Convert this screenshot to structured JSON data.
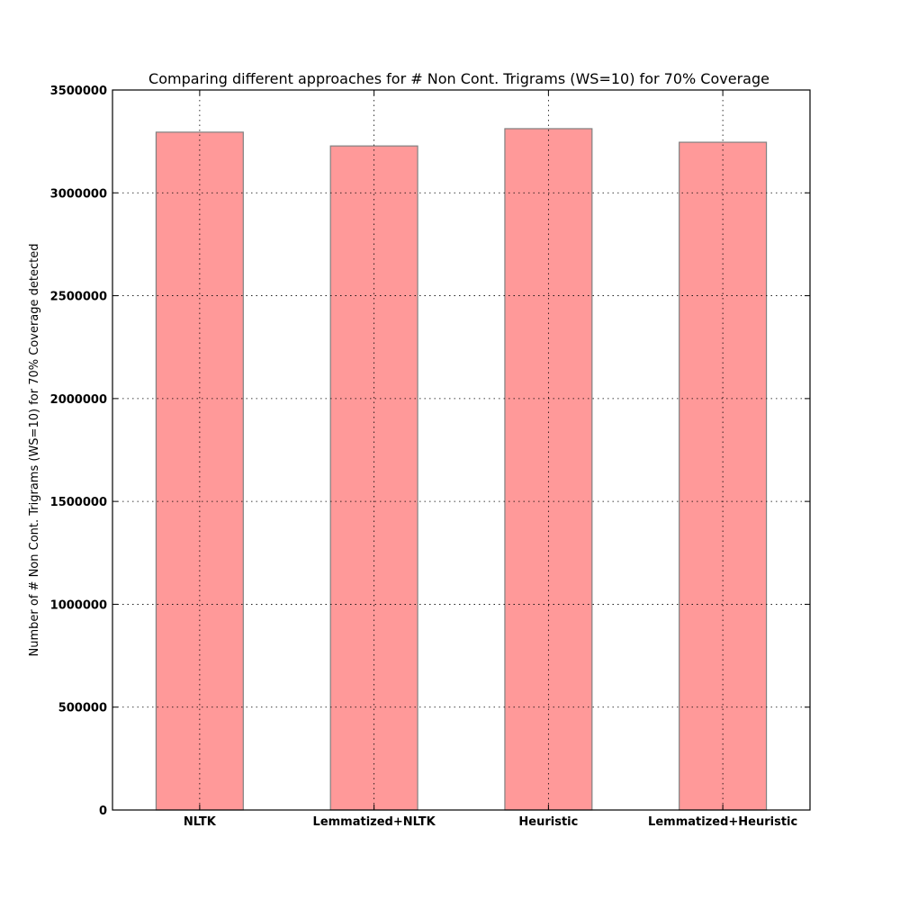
{
  "chart_data": {
    "type": "bar",
    "title": "Comparing different approaches for # Non Cont. Trigrams (WS=10) for 70% Coverage",
    "xlabel": "",
    "ylabel": "Number of # Non Cont. Trigrams (WS=10) for 70% Coverage detected",
    "categories": [
      "NLTK",
      "Lemmatized+NLTK",
      "Heuristic",
      "Lemmatized+Heuristic"
    ],
    "values": [
      3295000,
      3228000,
      3312000,
      3246000
    ],
    "ylim": [
      0,
      3500000
    ],
    "yticks": [
      0,
      500000,
      1000000,
      1500000,
      2000000,
      2500000,
      3000000,
      3500000
    ],
    "ytick_labels": [
      "0",
      "500000",
      "1000000",
      "1500000",
      "2000000",
      "2500000",
      "3000000",
      "3500000"
    ],
    "grid": true,
    "bar_color": "#ff9999",
    "bar_edge_color": "#808080"
  }
}
